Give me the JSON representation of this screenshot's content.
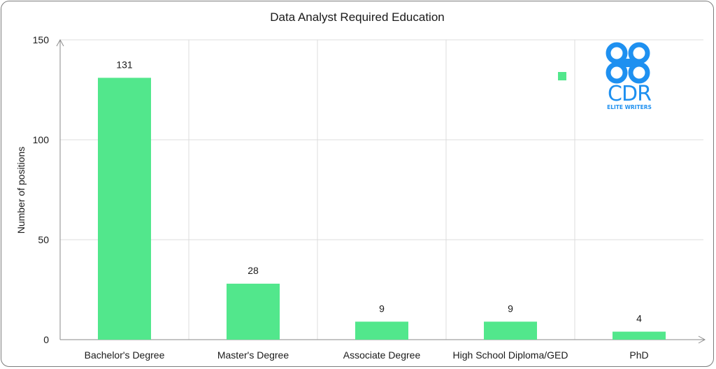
{
  "chart_data": {
    "type": "bar",
    "title": "Data Analyst Required Education",
    "ylabel": "Number of positions",
    "xlabel": "",
    "categories": [
      "Bachelor's Degree",
      "Master's Degree",
      "Associate Degree",
      "High School Diploma/GED",
      "PhD"
    ],
    "values": [
      131,
      28,
      9,
      9,
      4
    ],
    "data_labels": [
      "131",
      "28",
      "9",
      "9",
      "4"
    ],
    "ylim": [
      0,
      150
    ],
    "yticks": [
      0,
      50,
      100,
      150
    ],
    "ytick_labels": [
      "0",
      "50",
      "100",
      "150"
    ],
    "grid": true,
    "legend": "top-right",
    "bar_color": "#52e78c"
  },
  "logo": {
    "text": "CDR",
    "subtext": "ELITE WRITERS",
    "color": "#1e90f0"
  }
}
